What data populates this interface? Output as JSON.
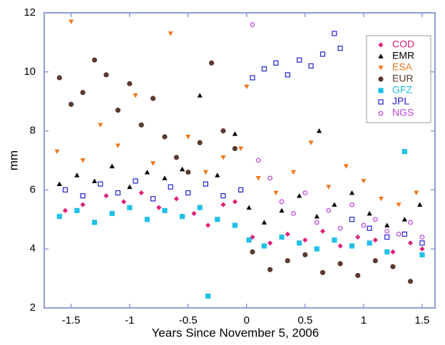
{
  "chart_data": {
    "type": "scatter",
    "x_label": "Years Since November 5, 2006",
    "y_label": "mm",
    "xlim": [
      -1.73,
      1.61
    ],
    "ylim": [
      2,
      12
    ],
    "xticks": [
      -1.5,
      -1,
      -0.5,
      0,
      0.5,
      1,
      1.5
    ],
    "yticks": [
      2,
      4,
      6,
      8,
      10,
      12
    ],
    "grid": false,
    "legend": "top-right",
    "series": [
      {
        "name": "COD",
        "color": "#e0207a",
        "marker": "diamond",
        "x": [
          -1.55,
          -1.4,
          -1.2,
          -1.05,
          -0.9,
          -0.75,
          -0.6,
          -0.45,
          -0.33,
          -0.2,
          -0.1,
          0.05,
          0.2,
          0.35,
          0.5,
          0.65,
          0.8,
          0.95,
          1.1,
          1.25,
          1.4,
          1.5
        ],
        "values": [
          5.3,
          5.5,
          5.8,
          5.6,
          5.9,
          5.4,
          5.7,
          5.2,
          4.8,
          5.5,
          5.6,
          4.4,
          4.2,
          4.5,
          4.3,
          4.6,
          4.1,
          4.4,
          4.3,
          3.9,
          4.2,
          4.0
        ]
      },
      {
        "name": "EMR",
        "color": "#000000",
        "marker": "triangle-up",
        "x": [
          -1.6,
          -1.45,
          -1.3,
          -1.15,
          -1.0,
          -0.85,
          -0.7,
          -0.55,
          -0.4,
          -0.25,
          -0.1,
          0.02,
          0.15,
          0.3,
          0.45,
          0.6,
          0.62,
          0.75,
          0.9,
          1.05,
          1.2,
          1.35,
          1.48
        ],
        "values": [
          6.2,
          6.5,
          6.3,
          6.8,
          6.1,
          6.6,
          6.4,
          6.7,
          9.2,
          6.5,
          7.9,
          5.4,
          4.9,
          5.3,
          5.8,
          5.1,
          8.0,
          5.5,
          5.9,
          5.2,
          4.8,
          5.0,
          5.5
        ]
      },
      {
        "name": "ESA",
        "color": "#f07820",
        "marker": "triangle-down",
        "x": [
          -1.62,
          -1.5,
          -1.4,
          -1.25,
          -1.1,
          -0.95,
          -0.8,
          -0.65,
          -0.5,
          -0.35,
          -0.2,
          -0.05,
          0.0,
          0.1,
          0.25,
          0.4,
          0.55,
          0.7,
          0.85,
          1.0,
          1.15,
          1.3,
          1.45
        ],
        "values": [
          7.3,
          11.7,
          7.0,
          8.2,
          7.5,
          9.2,
          6.9,
          11.3,
          7.8,
          6.6,
          7.1,
          7.4,
          9.5,
          6.4,
          5.9,
          6.6,
          7.6,
          6.1,
          6.8,
          6.3,
          5.7,
          5.5,
          5.9
        ]
      },
      {
        "name": "EUR",
        "color": "#5a3a30",
        "marker": "circle",
        "x": [
          -1.6,
          -1.5,
          -1.4,
          -1.3,
          -1.2,
          -1.1,
          -1.0,
          -0.9,
          -0.8,
          -0.7,
          -0.6,
          -0.5,
          -0.4,
          -0.3,
          -0.2,
          -0.1,
          0.05,
          0.2,
          0.35,
          0.5,
          0.65,
          0.8,
          0.95,
          1.1,
          1.25,
          1.4
        ],
        "values": [
          9.8,
          8.9,
          9.3,
          10.4,
          9.9,
          8.7,
          9.6,
          8.2,
          9.1,
          7.8,
          7.1,
          6.6,
          7.6,
          10.3,
          8.0,
          7.4,
          3.9,
          3.3,
          3.6,
          3.8,
          3.2,
          3.5,
          3.1,
          3.6,
          3.4,
          2.9
        ]
      },
      {
        "name": "GFZ",
        "color": "#20c0e8",
        "marker": "square",
        "x": [
          -1.6,
          -1.45,
          -1.3,
          -1.15,
          -1.0,
          -0.85,
          -0.7,
          -0.55,
          -0.4,
          -0.33,
          -0.25,
          -0.1,
          0.02,
          0.15,
          0.3,
          0.45,
          0.6,
          0.75,
          0.9,
          1.05,
          1.2,
          1.35,
          1.5
        ],
        "values": [
          5.1,
          5.3,
          4.9,
          5.2,
          5.4,
          5.0,
          5.3,
          5.1,
          5.4,
          2.4,
          5.0,
          4.8,
          4.3,
          4.1,
          4.4,
          4.2,
          4.0,
          4.3,
          4.1,
          4.2,
          3.9,
          7.3,
          3.8
        ]
      },
      {
        "name": "JPL",
        "color": "#2020d0",
        "marker": "open-square",
        "x": [
          -1.55,
          -1.4,
          -1.25,
          -1.1,
          -0.95,
          -0.8,
          -0.65,
          -0.5,
          -0.35,
          -0.2,
          -0.05,
          0.05,
          0.15,
          0.25,
          0.35,
          0.45,
          0.55,
          0.65,
          0.75,
          0.8,
          0.9,
          1.05,
          1.2,
          1.35,
          1.5
        ],
        "values": [
          6.0,
          5.8,
          6.2,
          5.9,
          6.3,
          5.7,
          6.1,
          5.9,
          6.2,
          5.8,
          6.0,
          9.8,
          10.1,
          10.3,
          9.9,
          10.4,
          10.2,
          10.6,
          11.3,
          10.8,
          5.0,
          4.7,
          4.4,
          4.5,
          4.2
        ]
      },
      {
        "name": "NGS",
        "color": "#c040e0",
        "marker": "open-circle",
        "x": [
          0.05,
          0.1,
          0.2,
          0.3,
          0.4,
          0.5,
          0.6,
          0.7,
          0.8,
          0.9,
          1.0,
          1.1,
          1.2,
          1.3,
          1.4,
          1.5
        ],
        "values": [
          11.6,
          7.0,
          6.4,
          5.6,
          5.2,
          5.9,
          4.9,
          5.3,
          4.7,
          5.5,
          4.8,
          5.0,
          4.6,
          4.5,
          4.9,
          4.4
        ]
      }
    ]
  }
}
